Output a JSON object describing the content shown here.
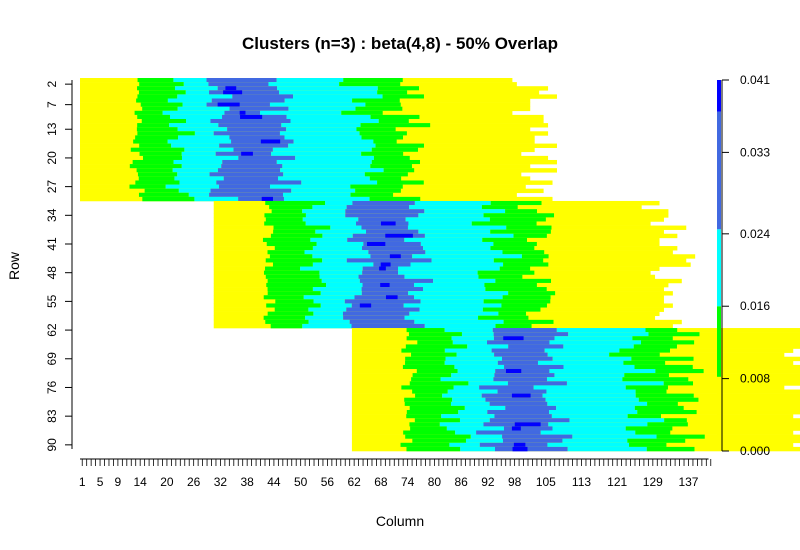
{
  "chart_data": {
    "type": "heatmap",
    "title": "Clusters (n=3) : beta(4,8) - 50% Overlap",
    "xlabel": "Column",
    "ylabel": "Row",
    "n_rows": 91,
    "n_cols": 142,
    "x_tick_labels": [
      "1",
      "5",
      "9",
      "14",
      "20",
      "26",
      "32",
      "38",
      "44",
      "50",
      "56",
      "62",
      "68",
      "74",
      "80",
      "86",
      "92",
      "98",
      "105",
      "113",
      "121",
      "129",
      "137"
    ],
    "y_tick_labels": [
      "2",
      "7",
      "13",
      "20",
      "27",
      "34",
      "41",
      "48",
      "55",
      "62",
      "69",
      "76",
      "83",
      "90"
    ],
    "legend": {
      "position": "right",
      "tick_labels": [
        "0.000",
        "0.008",
        "0.016",
        "0.024",
        "0.033",
        "0.041"
      ],
      "value_range": [
        0.0,
        0.041
      ],
      "breaks": [
        0.0,
        0.008,
        0.016,
        0.024,
        0.033,
        0.041
      ]
    },
    "colors": {
      "background": "#ffffff",
      "levels": [
        "#ffff00",
        "#00ff00",
        "#00ffff",
        "#4169e1",
        "#0000ff"
      ]
    },
    "clusters": [
      {
        "rows": [
          1,
          30
        ],
        "col_start": 1,
        "width": 99,
        "peak_col": 35
      },
      {
        "rows": [
          31,
          61
        ],
        "col_start": 31,
        "width": 99,
        "peak_col": 65
      },
      {
        "rows": [
          62,
          91
        ],
        "col_start": 62,
        "width": 99,
        "peak_col": 95
      }
    ]
  }
}
